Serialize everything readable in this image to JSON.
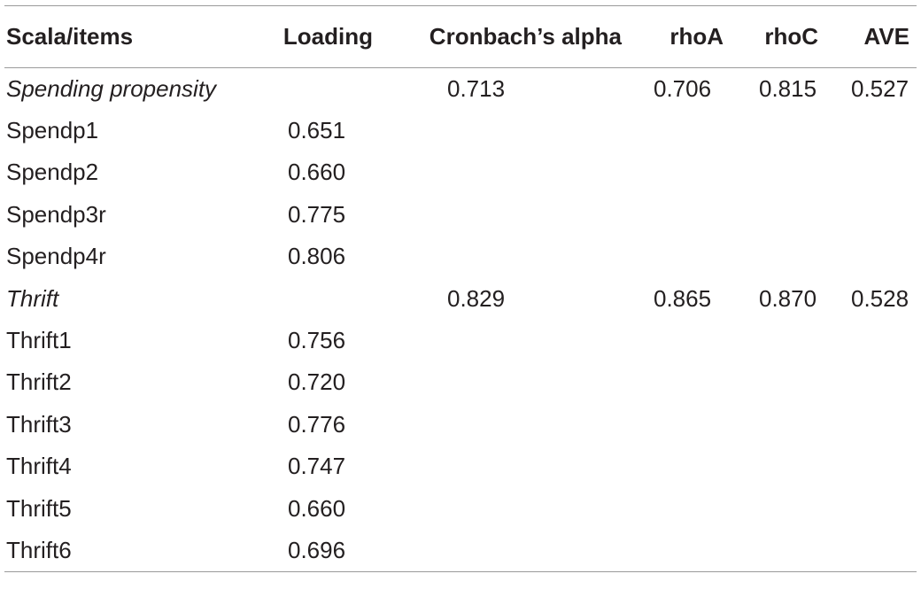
{
  "table": {
    "headers": {
      "item": "Scala/items",
      "loading": "Loading",
      "alpha": "Cronbach’s alpha",
      "rhoa": "rhoA",
      "rhoc": "rhoC",
      "ave": "AVE"
    },
    "rows": [
      {
        "item": "Spending propensity",
        "loading": "",
        "alpha": "0.713",
        "rhoa": "0.706",
        "rhoc": "0.815",
        "ave": "0.527",
        "is_scale": true
      },
      {
        "item": "Spendp1",
        "loading": "0.651",
        "alpha": "",
        "rhoa": "",
        "rhoc": "",
        "ave": "",
        "is_scale": false
      },
      {
        "item": "Spendp2",
        "loading": "0.660",
        "alpha": "",
        "rhoa": "",
        "rhoc": "",
        "ave": "",
        "is_scale": false
      },
      {
        "item": "Spendp3r",
        "loading": "0.775",
        "alpha": "",
        "rhoa": "",
        "rhoc": "",
        "ave": "",
        "is_scale": false
      },
      {
        "item": "Spendp4r",
        "loading": "0.806",
        "alpha": "",
        "rhoa": "",
        "rhoc": "",
        "ave": "",
        "is_scale": false
      },
      {
        "item": "Thrift",
        "loading": "",
        "alpha": "0.829",
        "rhoa": "0.865",
        "rhoc": "0.870",
        "ave": "0.528",
        "is_scale": true
      },
      {
        "item": "Thrift1",
        "loading": "0.756",
        "alpha": "",
        "rhoa": "",
        "rhoc": "",
        "ave": "",
        "is_scale": false
      },
      {
        "item": "Thrift2",
        "loading": "0.720",
        "alpha": "",
        "rhoa": "",
        "rhoc": "",
        "ave": "",
        "is_scale": false
      },
      {
        "item": "Thrift3",
        "loading": "0.776",
        "alpha": "",
        "rhoa": "",
        "rhoc": "",
        "ave": "",
        "is_scale": false
      },
      {
        "item": "Thrift4",
        "loading": "0.747",
        "alpha": "",
        "rhoa": "",
        "rhoc": "",
        "ave": "",
        "is_scale": false
      },
      {
        "item": "Thrift5",
        "loading": "0.660",
        "alpha": "",
        "rhoa": "",
        "rhoc": "",
        "ave": "",
        "is_scale": false
      },
      {
        "item": "Thrift6",
        "loading": "0.696",
        "alpha": "",
        "rhoa": "",
        "rhoc": "",
        "ave": "",
        "is_scale": false
      }
    ]
  }
}
